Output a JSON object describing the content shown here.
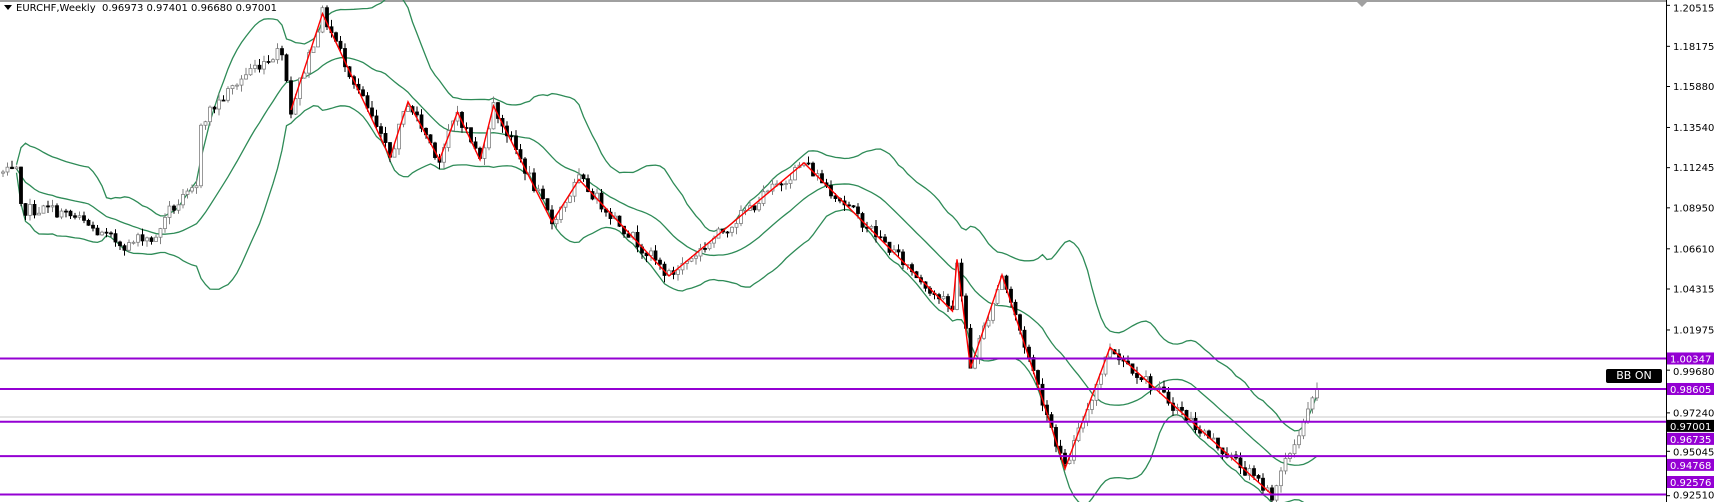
{
  "header": {
    "symbol_timeframe": "EURCHF,Weekly",
    "ohlc": "0.96973 0.97401 0.96680 0.97001"
  },
  "bb_button": {
    "label": "BB ON"
  },
  "chart_data": {
    "type": "candlestick",
    "symbol": "EURCHF",
    "timeframe": "Weekly",
    "last_bar": {
      "open": 0.96973,
      "high": 0.97401,
      "low": 0.9668,
      "close": 0.97001
    },
    "y_ticks": [
      "1.20515",
      "1.18175",
      "1.15880",
      "1.13540",
      "1.11245",
      "1.08950",
      "1.06610",
      "1.04315",
      "1.01975",
      "0.99680",
      "0.97240",
      "0.95045",
      "0.92510"
    ],
    "ylim": [
      0.9215,
      1.2082
    ],
    "price_path": [
      [
        0,
        1.1093
      ],
      [
        3,
        1.1093
      ],
      [
        4,
        1.0885
      ],
      [
        11,
        1.0885
      ],
      [
        17,
        1.0826
      ],
      [
        22,
        1.0737
      ],
      [
        28,
        1.0678
      ],
      [
        31,
        1.0737
      ],
      [
        34,
        1.0708
      ],
      [
        36,
        1.0856
      ],
      [
        43,
        1.1004
      ],
      [
        44,
        1.1389
      ],
      [
        46,
        1.1448
      ],
      [
        55,
        1.1685
      ],
      [
        62,
        1.1803
      ],
      [
        63,
        1.1625
      ],
      [
        64,
        1.1454
      ],
      [
        71,
        1.2004
      ],
      [
        86,
        1.1181
      ],
      [
        90,
        1.1501
      ],
      [
        97,
        1.1169
      ],
      [
        101,
        1.1442
      ],
      [
        106,
        1.1169
      ],
      [
        109,
        1.1477
      ],
      [
        122,
        1.0814
      ],
      [
        128,
        1.1057
      ],
      [
        148,
        1.0506
      ],
      [
        178,
        1.1152
      ],
      [
        211,
        1.0305
      ],
      [
        212,
        1.0601
      ],
      [
        215,
        0.998
      ],
      [
        222,
        1.0512
      ],
      [
        236,
        0.9405
      ],
      [
        246,
        1.0098
      ],
      [
        282,
        0.9257
      ],
      [
        292,
        0.9849
      ],
      [
        293,
        0.97001
      ]
    ],
    "zigzag": [
      [
        64,
        1.1454
      ],
      [
        71,
        1.2004
      ],
      [
        86,
        1.1181
      ],
      [
        90,
        1.1501
      ],
      [
        97,
        1.1169
      ],
      [
        101,
        1.1442
      ],
      [
        106,
        1.1169
      ],
      [
        109,
        1.1477
      ],
      [
        122,
        1.0814
      ],
      [
        128,
        1.1057
      ],
      [
        148,
        1.0506
      ],
      [
        178,
        1.1152
      ],
      [
        211,
        1.0305
      ],
      [
        212,
        1.0601
      ],
      [
        215,
        0.998
      ],
      [
        222,
        1.0512
      ],
      [
        236,
        0.9405
      ],
      [
        246,
        1.0098
      ],
      [
        282,
        0.9257
      ]
    ],
    "indicators": {
      "bollinger_bands": {
        "period": 20,
        "deviation": 2,
        "color": "#2e8b57"
      },
      "zigzag_color": "#ff0000"
    },
    "levels": [
      {
        "price": 1.00347,
        "label": "1.00347"
      },
      {
        "price": 0.98605,
        "label": "0.98605"
      },
      {
        "price": 0.96735,
        "label": "0.96735"
      },
      {
        "price": 0.94768,
        "label": "0.94768"
      },
      {
        "price": 0.92576,
        "label": "0.92576"
      }
    ],
    "current_price": {
      "price": 0.97001,
      "label": "0.97001"
    },
    "colors": {
      "level": "#9400d3",
      "bull": "#808080",
      "bear": "#000000",
      "current_line": "#c8c8c8"
    },
    "grid": false
  }
}
